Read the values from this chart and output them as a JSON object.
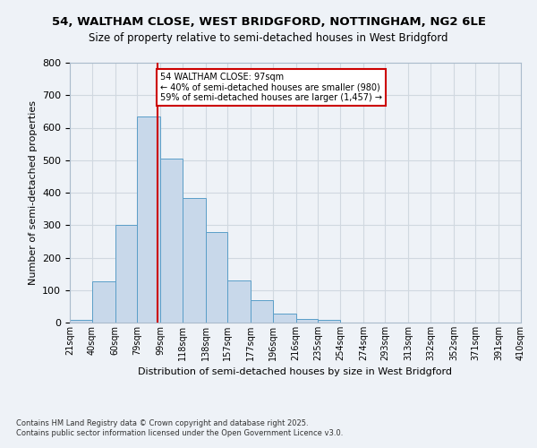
{
  "title_line1": "54, WALTHAM CLOSE, WEST BRIDGFORD, NOTTINGHAM, NG2 6LE",
  "title_line2": "Size of property relative to semi-detached houses in West Bridgford",
  "xlabel": "Distribution of semi-detached houses by size in West Bridgford",
  "ylabel": "Number of semi-detached properties",
  "footer_line1": "Contains HM Land Registry data © Crown copyright and database right 2025.",
  "footer_line2": "Contains public sector information licensed under the Open Government Licence v3.0.",
  "bin_labels": [
    "21sqm",
    "40sqm",
    "60sqm",
    "79sqm",
    "99sqm",
    "118sqm",
    "138sqm",
    "157sqm",
    "177sqm",
    "196sqm",
    "216sqm",
    "235sqm",
    "254sqm",
    "274sqm",
    "293sqm",
    "313sqm",
    "332sqm",
    "352sqm",
    "371sqm",
    "391sqm",
    "410sqm"
  ],
  "bin_edges": [
    21,
    40,
    60,
    79,
    99,
    118,
    138,
    157,
    177,
    196,
    216,
    235,
    254,
    274,
    293,
    313,
    332,
    352,
    371,
    391,
    410
  ],
  "bar_heights": [
    8,
    128,
    302,
    635,
    505,
    383,
    280,
    130,
    70,
    27,
    10,
    7,
    0,
    0,
    0,
    0,
    0,
    0,
    0,
    0
  ],
  "bar_color": "#c8d8ea",
  "bar_edge_color": "#5a9ec8",
  "grid_color": "#d0d8e0",
  "bg_color": "#eef2f7",
  "property_size": 97,
  "red_line_color": "#cc0000",
  "annotation_line1": "54 WALTHAM CLOSE: 97sqm",
  "annotation_line2": "← 40% of semi-detached houses are smaller (980)",
  "annotation_line3": "59% of semi-detached houses are larger (1,457) →",
  "annotation_box_color": "#ffffff",
  "annotation_box_edge": "#cc0000",
  "ylim": [
    0,
    800
  ],
  "yticks": [
    0,
    100,
    200,
    300,
    400,
    500,
    600,
    700,
    800
  ]
}
